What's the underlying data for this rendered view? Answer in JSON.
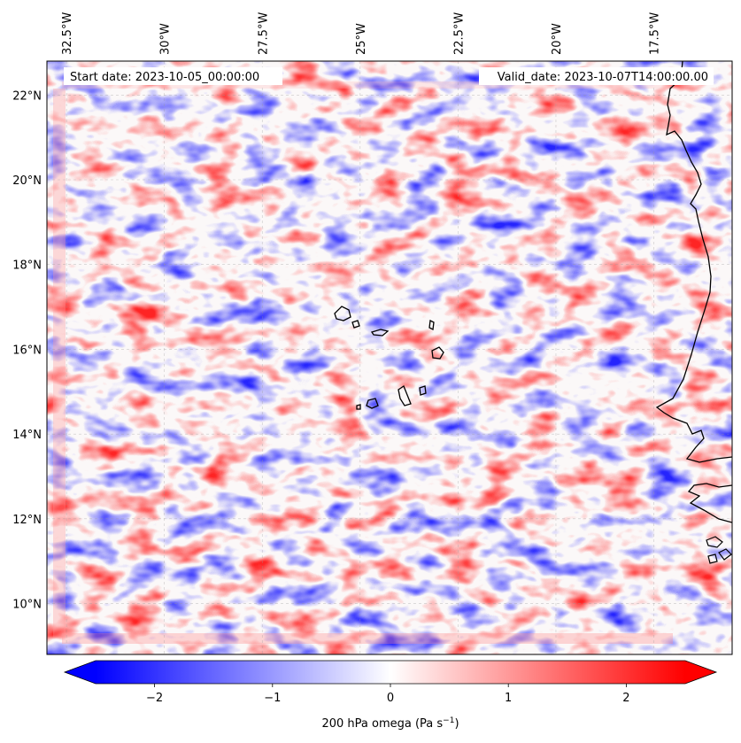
{
  "map": {
    "start_date_label": "Start date: 2023-10-05_00:00:00",
    "valid_date_label": "Valid_date: 2023-10-07T14:00:00.00",
    "lon_labels": [
      "32.5°W",
      "30°W",
      "27.5°W",
      "25°W",
      "22.5°W",
      "20°W",
      "17.5°W"
    ],
    "lat_labels": [
      "22°N",
      "20°N",
      "18°N",
      "16°N",
      "14°N",
      "12°N",
      "10°N"
    ],
    "extent": {
      "lon_min": -33.0,
      "lon_max": -15.5,
      "lat_min": 8.8,
      "lat_max": 22.8
    },
    "field_variable": "200 hPa omega"
  },
  "colorbar": {
    "label_main": "200 hPa omega (Pa s",
    "label_exp": "−1",
    "label_close": ")",
    "ticks": [
      "−2",
      "−1",
      "0",
      "1",
      "2"
    ],
    "tick_values": [
      -2,
      -1,
      0,
      1,
      2
    ],
    "vmin": -2.5,
    "vmax": 2.5,
    "extend": "both",
    "cmap": "bwr",
    "color_low": "#0000ff",
    "color_mid": "#ffffff",
    "color_high": "#ff0000"
  }
}
